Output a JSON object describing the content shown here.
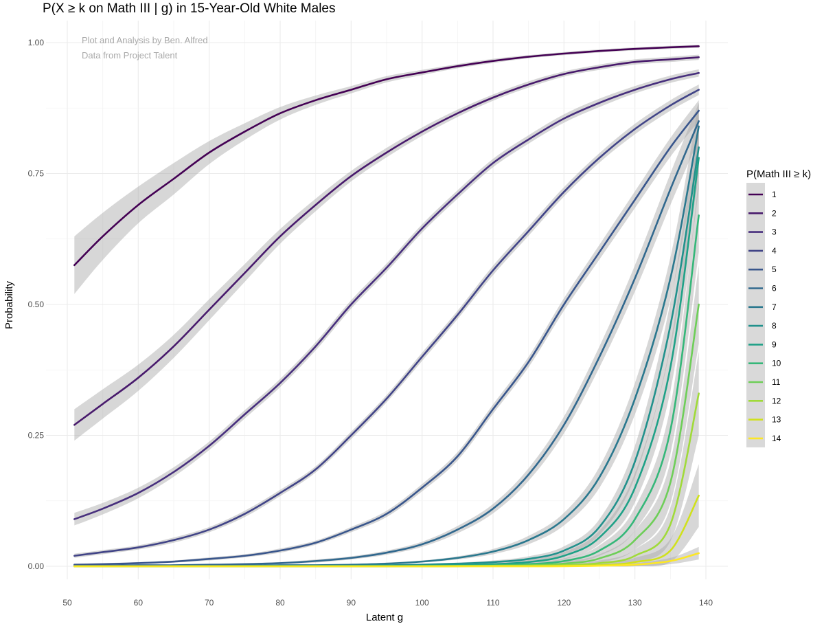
{
  "chart_data": {
    "type": "line",
    "title": "P(X ≥ k on Math III | g) in 15-Year-Old White Males",
    "xlabel": "Latent g",
    "ylabel": "Probability",
    "annotations": [
      "Plot and Analysis by Ben. Alfred",
      "Data from Project Talent"
    ],
    "xlim": [
      50,
      140
    ],
    "ylim": [
      0,
      1
    ],
    "xticks": [
      50,
      60,
      70,
      80,
      90,
      100,
      110,
      120,
      130,
      140
    ],
    "xtick_labels": [
      "50",
      "60",
      "70",
      "80",
      "90",
      "100",
      "110",
      "120",
      "130",
      "140"
    ],
    "yticks": [
      0,
      0.25,
      0.5,
      0.75,
      1.0
    ],
    "ytick_labels": [
      "0.00",
      "0.25",
      "0.50",
      "0.75",
      "1.00"
    ],
    "grid": true,
    "legend_title": "P(Math III ≥ k)",
    "legend_position": "right",
    "x": [
      51,
      55,
      60,
      65,
      70,
      75,
      80,
      85,
      90,
      95,
      100,
      105,
      110,
      115,
      120,
      125,
      130,
      135,
      139
    ],
    "series": [
      {
        "name": "1",
        "color": "#440154",
        "values": [
          0.575,
          0.63,
          0.69,
          0.74,
          0.79,
          0.83,
          0.865,
          0.89,
          0.91,
          0.93,
          0.943,
          0.955,
          0.965,
          0.973,
          0.979,
          0.984,
          0.988,
          0.991,
          0.993
        ],
        "ci": [
          0.055,
          0.045,
          0.035,
          0.03,
          0.022,
          0.016,
          0.012,
          0.009,
          0.007,
          0.006,
          0.005,
          0.004,
          0.004,
          0.003,
          0.003,
          0.003,
          0.003,
          0.003,
          0.003
        ]
      },
      {
        "name": "2",
        "color": "#481a6c",
        "values": [
          0.27,
          0.31,
          0.36,
          0.42,
          0.49,
          0.56,
          0.63,
          0.69,
          0.745,
          0.79,
          0.83,
          0.865,
          0.895,
          0.92,
          0.94,
          0.953,
          0.963,
          0.968,
          0.972
        ],
        "ci": [
          0.03,
          0.028,
          0.025,
          0.022,
          0.02,
          0.017,
          0.014,
          0.012,
          0.01,
          0.009,
          0.008,
          0.007,
          0.006,
          0.006,
          0.005,
          0.005,
          0.005,
          0.005,
          0.005
        ]
      },
      {
        "name": "3",
        "color": "#472f7d",
        "values": [
          0.09,
          0.11,
          0.14,
          0.18,
          0.23,
          0.29,
          0.35,
          0.42,
          0.5,
          0.57,
          0.645,
          0.71,
          0.77,
          0.815,
          0.855,
          0.885,
          0.91,
          0.93,
          0.942
        ],
        "ci": [
          0.012,
          0.011,
          0.01,
          0.009,
          0.008,
          0.008,
          0.008,
          0.008,
          0.008,
          0.008,
          0.008,
          0.008,
          0.008,
          0.008,
          0.008,
          0.008,
          0.007,
          0.007,
          0.007
        ]
      },
      {
        "name": "4",
        "color": "#414487",
        "values": [
          0.02,
          0.027,
          0.036,
          0.05,
          0.07,
          0.1,
          0.14,
          0.185,
          0.25,
          0.32,
          0.4,
          0.48,
          0.565,
          0.64,
          0.715,
          0.78,
          0.835,
          0.88,
          0.91
        ],
        "ci": [
          0.004,
          0.004,
          0.004,
          0.005,
          0.005,
          0.006,
          0.006,
          0.006,
          0.007,
          0.007,
          0.008,
          0.008,
          0.009,
          0.009,
          0.009,
          0.009,
          0.01,
          0.01,
          0.01
        ]
      },
      {
        "name": "5",
        "color": "#39568c",
        "values": [
          0.003,
          0.004,
          0.006,
          0.009,
          0.014,
          0.02,
          0.03,
          0.045,
          0.07,
          0.1,
          0.15,
          0.21,
          0.3,
          0.39,
          0.5,
          0.6,
          0.7,
          0.8,
          0.87
        ],
        "ci": [
          0.002,
          0.002,
          0.002,
          0.002,
          0.003,
          0.003,
          0.004,
          0.004,
          0.005,
          0.006,
          0.007,
          0.008,
          0.009,
          0.01,
          0.012,
          0.014,
          0.016,
          0.018,
          0.02
        ]
      },
      {
        "name": "6",
        "color": "#31688e",
        "values": [
          0.001,
          0.001,
          0.002,
          0.002,
          0.003,
          0.004,
          0.006,
          0.01,
          0.016,
          0.026,
          0.042,
          0.07,
          0.11,
          0.175,
          0.27,
          0.4,
          0.55,
          0.72,
          0.85
        ],
        "ci": [
          0.001,
          0.001,
          0.001,
          0.001,
          0.001,
          0.002,
          0.002,
          0.003,
          0.003,
          0.004,
          0.005,
          0.007,
          0.009,
          0.012,
          0.016,
          0.02,
          0.025,
          0.03,
          0.035
        ]
      },
      {
        "name": "7",
        "color": "#2a788e",
        "values": [
          0,
          0,
          0,
          0.001,
          0.001,
          0.001,
          0.002,
          0.002,
          0.003,
          0.005,
          0.009,
          0.016,
          0.028,
          0.05,
          0.09,
          0.17,
          0.32,
          0.55,
          0.84
        ],
        "ci": [
          0.001,
          0.001,
          0.001,
          0.001,
          0.001,
          0.001,
          0.001,
          0.001,
          0.001,
          0.002,
          0.002,
          0.003,
          0.005,
          0.008,
          0.012,
          0.02,
          0.03,
          0.04,
          0.045
        ]
      },
      {
        "name": "8",
        "color": "#21918c",
        "values": [
          0,
          0,
          0,
          0,
          0,
          0.001,
          0.001,
          0.001,
          0.001,
          0.002,
          0.003,
          0.005,
          0.008,
          0.014,
          0.03,
          0.075,
          0.2,
          0.46,
          0.8
        ],
        "ci": [
          0.001,
          0.001,
          0.001,
          0.001,
          0.001,
          0.001,
          0.001,
          0.001,
          0.001,
          0.001,
          0.002,
          0.002,
          0.003,
          0.005,
          0.008,
          0.015,
          0.03,
          0.045,
          0.055
        ]
      },
      {
        "name": "9",
        "color": "#1fa187",
        "values": [
          0,
          0,
          0,
          0,
          0,
          0,
          0,
          0,
          0.001,
          0.001,
          0.001,
          0.002,
          0.004,
          0.008,
          0.02,
          0.055,
          0.15,
          0.38,
          0.78
        ],
        "ci": [
          0.001,
          0.001,
          0.001,
          0.001,
          0.001,
          0.001,
          0.001,
          0.001,
          0.001,
          0.001,
          0.001,
          0.002,
          0.002,
          0.004,
          0.007,
          0.013,
          0.028,
          0.045,
          0.06
        ]
      },
      {
        "name": "10",
        "color": "#35b779",
        "values": [
          0,
          0,
          0,
          0,
          0,
          0,
          0,
          0,
          0,
          0,
          0.001,
          0.001,
          0.002,
          0.004,
          0.01,
          0.03,
          0.09,
          0.26,
          0.67
        ],
        "ci": [
          0.001,
          0.001,
          0.001,
          0.001,
          0.001,
          0.001,
          0.001,
          0.001,
          0.001,
          0.001,
          0.001,
          0.001,
          0.002,
          0.003,
          0.005,
          0.01,
          0.022,
          0.045,
          0.07
        ]
      },
      {
        "name": "11",
        "color": "#6ece58",
        "values": [
          0,
          0,
          0,
          0,
          0,
          0,
          0,
          0,
          0,
          0,
          0,
          0.001,
          0.001,
          0.002,
          0.005,
          0.015,
          0.05,
          0.16,
          0.5
        ],
        "ci": [
          0.001,
          0.001,
          0.001,
          0.001,
          0.001,
          0.001,
          0.001,
          0.001,
          0.001,
          0.001,
          0.001,
          0.001,
          0.001,
          0.002,
          0.004,
          0.008,
          0.018,
          0.04,
          0.075
        ]
      },
      {
        "name": "12",
        "color": "#a0da39",
        "values": [
          0,
          0,
          0,
          0,
          0,
          0,
          0,
          0,
          0,
          0,
          0,
          0,
          0.001,
          0.001,
          0.002,
          0.006,
          0.02,
          0.08,
          0.33
        ],
        "ci": [
          0.001,
          0.001,
          0.001,
          0.001,
          0.001,
          0.001,
          0.001,
          0.001,
          0.001,
          0.001,
          0.001,
          0.001,
          0.001,
          0.001,
          0.002,
          0.005,
          0.012,
          0.032,
          0.08
        ]
      },
      {
        "name": "13",
        "color": "#d0e11c",
        "values": [
          0,
          0,
          0,
          0,
          0,
          0,
          0,
          0,
          0,
          0,
          0,
          0,
          0,
          0,
          0.001,
          0.002,
          0.008,
          0.03,
          0.135
        ],
        "ci": [
          0.001,
          0.001,
          0.001,
          0.001,
          0.001,
          0.001,
          0.001,
          0.001,
          0.001,
          0.001,
          0.001,
          0.001,
          0.001,
          0.001,
          0.001,
          0.003,
          0.008,
          0.022,
          0.06
        ]
      },
      {
        "name": "14",
        "color": "#fde725",
        "values": [
          0,
          0,
          0,
          0,
          0,
          0,
          0,
          0,
          0,
          0,
          0,
          0,
          0,
          0,
          0,
          0.001,
          0.003,
          0.01,
          0.025
        ],
        "ci": [
          0.001,
          0.001,
          0.001,
          0.001,
          0.001,
          0.001,
          0.001,
          0.001,
          0.001,
          0.001,
          0.001,
          0.001,
          0.001,
          0.001,
          0.001,
          0.001,
          0.003,
          0.006,
          0.012
        ]
      }
    ]
  }
}
